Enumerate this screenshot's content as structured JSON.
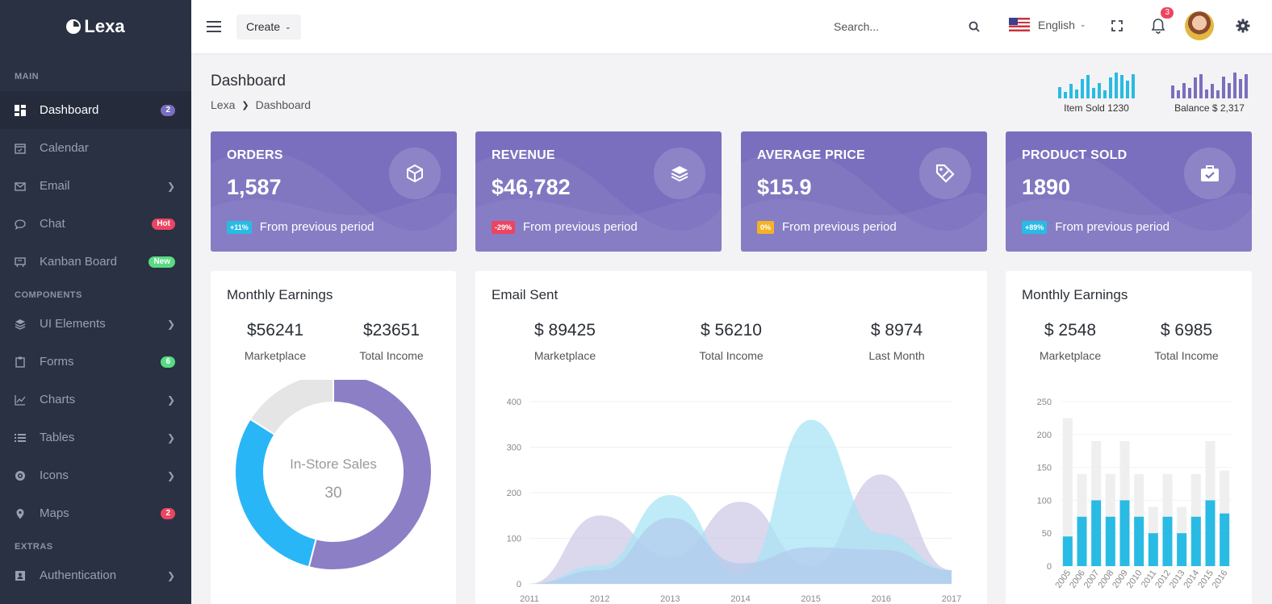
{
  "brand": {
    "name": "Lexa"
  },
  "sidebar": {
    "sections": [
      {
        "title": "MAIN",
        "items": [
          {
            "label": "Dashboard",
            "icon": "dashboard-icon",
            "badge": "2",
            "badge_color": "#7a6fbe",
            "active": true
          },
          {
            "label": "Calendar",
            "icon": "calendar-icon"
          },
          {
            "label": "Email",
            "icon": "email-icon",
            "chevron": true
          },
          {
            "label": "Chat",
            "icon": "chat-icon",
            "badge": "Hot",
            "badge_color": "#ec4561"
          },
          {
            "label": "Kanban Board",
            "icon": "kanban-icon",
            "badge": "New",
            "badge_color": "#58db83"
          }
        ]
      },
      {
        "title": "COMPONENTS",
        "items": [
          {
            "label": "UI Elements",
            "icon": "layers-icon",
            "chevron": true
          },
          {
            "label": "Forms",
            "icon": "clipboard-icon",
            "badge": "6",
            "badge_color": "#58db83"
          },
          {
            "label": "Charts",
            "icon": "line-chart-icon",
            "chevron": true
          },
          {
            "label": "Tables",
            "icon": "list-icon",
            "chevron": true
          },
          {
            "label": "Icons",
            "icon": "target-icon",
            "chevron": true
          },
          {
            "label": "Maps",
            "icon": "map-pin-icon",
            "badge": "2",
            "badge_color": "#ec4561"
          }
        ]
      },
      {
        "title": "EXTRAS",
        "items": [
          {
            "label": "Authentication",
            "icon": "user-card-icon",
            "chevron": true
          }
        ]
      }
    ]
  },
  "topbar": {
    "create_label": "Create",
    "search_placeholder": "Search...",
    "language": "English",
    "notification_count": "3"
  },
  "page": {
    "title": "Dashboard",
    "breadcrumb": [
      "Lexa",
      "Dashboard"
    ]
  },
  "mini_stats": [
    {
      "caption": "Item Sold 1230",
      "color": "#29bbe3",
      "levels": [
        0.45,
        0.25,
        0.55,
        0.35,
        0.75,
        0.9,
        0.4,
        0.6,
        0.3,
        0.8,
        1.0,
        0.9,
        0.7,
        0.95
      ]
    },
    {
      "caption": "Balance $ 2,317",
      "color": "#7a6fbe",
      "levels": [
        0.5,
        0.3,
        0.6,
        0.4,
        0.8,
        0.95,
        0.35,
        0.55,
        0.3,
        0.85,
        0.6,
        1.0,
        0.75,
        0.95
      ]
    }
  ],
  "stats": [
    {
      "title": "ORDERS",
      "value": "1,587",
      "change": "+11%",
      "change_color": "#29bbe3",
      "note": "From previous period",
      "icon": "cube-icon"
    },
    {
      "title": "REVENUE",
      "value": "$46,782",
      "change": "-29%",
      "change_color": "#ec4561",
      "note": "From previous period",
      "icon": "layers-icon"
    },
    {
      "title": "AVERAGE PRICE",
      "value": "$15.9",
      "change": "0%",
      "change_color": "#f5b225",
      "note": "From previous period",
      "icon": "price-tag-icon"
    },
    {
      "title": "PRODUCT SOLD",
      "value": "1890",
      "change": "+89%",
      "change_color": "#29bbe3",
      "note": "From previous period",
      "icon": "briefcase-icon"
    }
  ],
  "panels": {
    "earnings_donut": {
      "title": "Monthly Earnings",
      "metrics": [
        {
          "value": "$56241",
          "label": "Marketplace"
        },
        {
          "value": "$23651",
          "label": "Total Income"
        }
      ]
    },
    "email_sent": {
      "title": "Email Sent",
      "metrics": [
        {
          "value": "$ 89425",
          "label": "Marketplace"
        },
        {
          "value": "$ 56210",
          "label": "Total Income"
        },
        {
          "value": "$ 8974",
          "label": "Last Month"
        }
      ]
    },
    "earnings_bars": {
      "title": "Monthly Earnings",
      "metrics": [
        {
          "value": "$ 2548",
          "label": "Marketplace"
        },
        {
          "value": "$ 6985",
          "label": "Total Income"
        }
      ]
    }
  },
  "chart_data": [
    {
      "type": "pie",
      "title": "",
      "center_label": "In-Store Sales",
      "center_value": "30",
      "slices": [
        {
          "value": 54,
          "color": "#8d7fc6"
        },
        {
          "value": 30,
          "color": "#29b6f6"
        },
        {
          "value": 16,
          "color": "#e5e5e5"
        }
      ]
    },
    {
      "type": "area",
      "title": "",
      "x": [
        2011,
        2012,
        2013,
        2014,
        2015,
        2016,
        2017
      ],
      "ylim": [
        0,
        400
      ],
      "yticks": [
        0,
        100,
        200,
        300,
        400
      ],
      "xticks": [
        "2011",
        "2012",
        "2013",
        "2014",
        "2015",
        "2016",
        "2017"
      ],
      "series": [
        {
          "values": [
            0,
            150,
            60,
            180,
            40,
            240,
            30
          ],
          "color": "#cfc9e6"
        },
        {
          "values": [
            0,
            40,
            195,
            20,
            360,
            110,
            30
          ],
          "color": "#a8e4f4"
        },
        {
          "values": [
            0,
            30,
            145,
            45,
            80,
            75,
            30
          ],
          "color": "#b3cbed"
        }
      ]
    },
    {
      "type": "bar",
      "title": "",
      "categories": [
        "2005",
        "2006",
        "2007",
        "2008",
        "2009",
        "2010",
        "2011",
        "2012",
        "2013",
        "2014",
        "2015",
        "2016"
      ],
      "ylim": [
        0,
        250
      ],
      "yticks": [
        0,
        50,
        100,
        150,
        200,
        250
      ],
      "series": [
        {
          "values": [
            45,
            75,
            100,
            75,
            100,
            75,
            50,
            75,
            50,
            75,
            100,
            80
          ],
          "color": "#29bbe3"
        },
        {
          "values": [
            225,
            140,
            190,
            140,
            190,
            140,
            90,
            140,
            90,
            140,
            190,
            145
          ],
          "color": "#efefef"
        }
      ]
    }
  ]
}
